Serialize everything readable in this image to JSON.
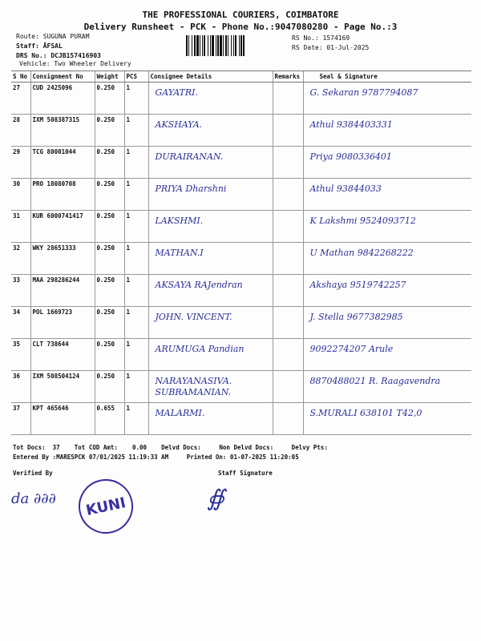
{
  "header": {
    "company": "THE PROFESSIONAL COURIERS, COIMBATORE",
    "subtitle": "Delivery Runsheet - PCK - Phone No.:9047080280 - Page No.:3",
    "route": "Route: SUGUNA PURAM",
    "staff": "Staff: ÅFSAL",
    "drs": "DRS No.: DCJB157416903",
    "vehicle": "Vehicle: Two Wheeler Delivery",
    "rs_no": "RS No.: 1574169",
    "rs_date": "RS Date: 01-Jul-2025"
  },
  "table": {
    "columns": [
      "S No",
      "Consignment No",
      "Weight",
      "PCS",
      "Consignee Details",
      "Remarks",
      "Seal & Signature"
    ],
    "rows": [
      {
        "sno": "27",
        "cn": "CUD 2425096",
        "wt": "0.250",
        "pcs": "1",
        "consignee": "GAYATRI.",
        "remarks": "",
        "sign": "G. Sekaran 9787794087"
      },
      {
        "sno": "28",
        "cn": "IXM 508387315",
        "wt": "0.250",
        "pcs": "1",
        "consignee": "AKSHAYA.",
        "remarks": "",
        "sign": "Athul 9384403331"
      },
      {
        "sno": "29",
        "cn": "TCG 80001044",
        "wt": "0.250",
        "pcs": "1",
        "consignee": "DURAIRANAN.",
        "remarks": "",
        "sign": "Priya 9080336401"
      },
      {
        "sno": "30",
        "cn": "PRO 18080708",
        "wt": "0.250",
        "pcs": "1",
        "consignee": "PRIYA Dharshni",
        "remarks": "",
        "sign": "Athul 93844033"
      },
      {
        "sno": "31",
        "cn": "KUR 6000741417",
        "wt": "0.250",
        "pcs": "1",
        "consignee": "LAKSHMI.",
        "remarks": "",
        "sign": "K Lakshmi 9524093712"
      },
      {
        "sno": "32",
        "cn": "WKY 28651333",
        "wt": "0.250",
        "pcs": "1",
        "consignee": "MATHAN.I",
        "remarks": "",
        "sign": "U Mathan 9842268222"
      },
      {
        "sno": "33",
        "cn": "MAA 298286244",
        "wt": "0.250",
        "pcs": "1",
        "consignee": "AKSAYA RAJendran",
        "remarks": "",
        "sign": "Akshaya 9519742257"
      },
      {
        "sno": "34",
        "cn": "POL 1669723",
        "wt": "0.250",
        "pcs": "1",
        "consignee": "JOHN. VINCENT.",
        "remarks": "",
        "sign": "J. Stella 9677382985"
      },
      {
        "sno": "35",
        "cn": "CLT 738644",
        "wt": "0.250",
        "pcs": "1",
        "consignee": "ARUMUGA Pandian",
        "remarks": "",
        "sign": "9092274207 Arule"
      },
      {
        "sno": "36",
        "cn": "IXM 508504124",
        "wt": "0.250",
        "pcs": "1",
        "consignee": "NARAYANASIVA. SUBRAMANIAN.",
        "remarks": "",
        "sign": "8870488021 R. Raagavendra"
      },
      {
        "sno": "37",
        "cn": "KPT 465646",
        "wt": "0.655",
        "pcs": "1",
        "consignee": "MALARMI.",
        "remarks": "",
        "sign": "S.MURALI 638101 T42,0"
      }
    ]
  },
  "footer": {
    "line1": "Tot Docs:  37    Tot COD Amt:    0.00    Delvd Docs:     Non Delvd Docs:     Delvy Pts:",
    "line2": "Entered By :MARESPCK 07/01/2025 11:19:33 AM     Printed On: 01-07-2025 11:20:05",
    "verified_by": "Verified By",
    "staff_signature": "Staff Signature",
    "stamp": "KUNI"
  }
}
